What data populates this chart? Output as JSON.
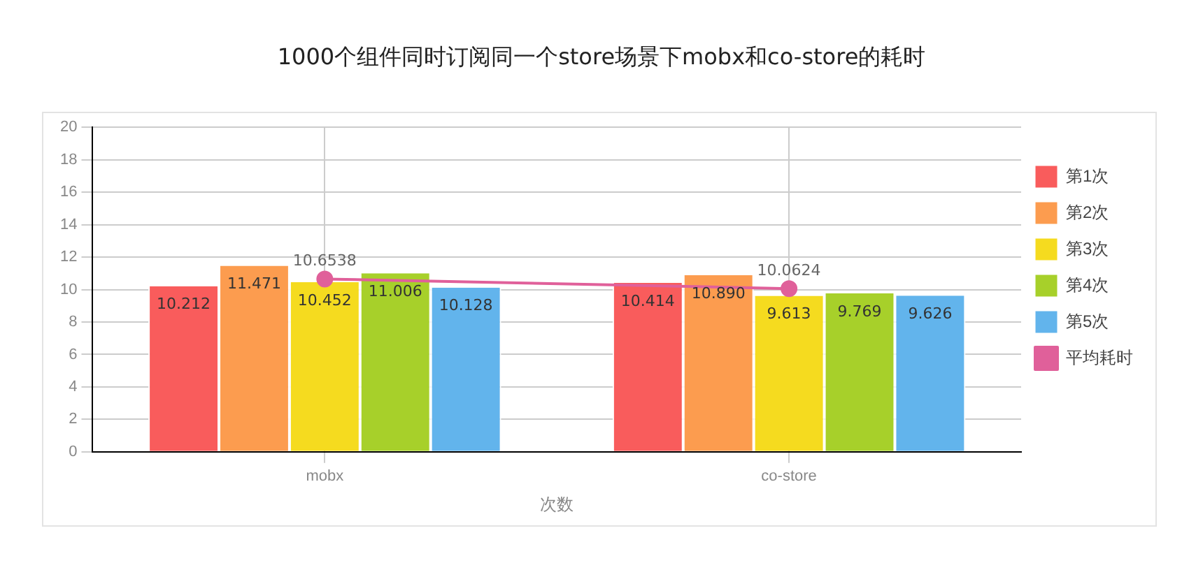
{
  "chart_data": {
    "type": "bar",
    "title": "1000个组件同时订阅同一个store场景下mobx和co-store的耗时",
    "xlabel": "次数",
    "categories": [
      "mobx",
      "co-store"
    ],
    "series": [
      {
        "name": "第1次",
        "color": "#f95c5c",
        "values": [
          10.212,
          10.414
        ],
        "value_labels": [
          "10.212",
          "10.414"
        ]
      },
      {
        "name": "第2次",
        "color": "#fc9c4f",
        "values": [
          11.471,
          10.89
        ],
        "value_labels": [
          "11.471",
          "10.890"
        ]
      },
      {
        "name": "第3次",
        "color": "#f5db1f",
        "values": [
          10.452,
          9.613
        ],
        "value_labels": [
          "10.452",
          "9.613"
        ]
      },
      {
        "name": "第4次",
        "color": "#a7d02a",
        "values": [
          11.006,
          9.769
        ],
        "value_labels": [
          "11.006",
          "9.769"
        ]
      },
      {
        "name": "第5次",
        "color": "#62b4ec",
        "values": [
          10.128,
          9.626
        ],
        "value_labels": [
          "10.128",
          "9.626"
        ]
      },
      {
        "name": "平均耗时",
        "type": "line",
        "color": "#e0609a",
        "marker": "circle",
        "values": [
          10.6538,
          10.0624
        ],
        "value_labels": [
          "10.6538",
          "10.0624"
        ]
      }
    ],
    "ylim": [
      0,
      20
    ],
    "yticks": [
      0,
      2,
      4,
      6,
      8,
      10,
      12,
      14,
      16,
      18,
      20
    ],
    "grid": true,
    "legend": "right"
  }
}
